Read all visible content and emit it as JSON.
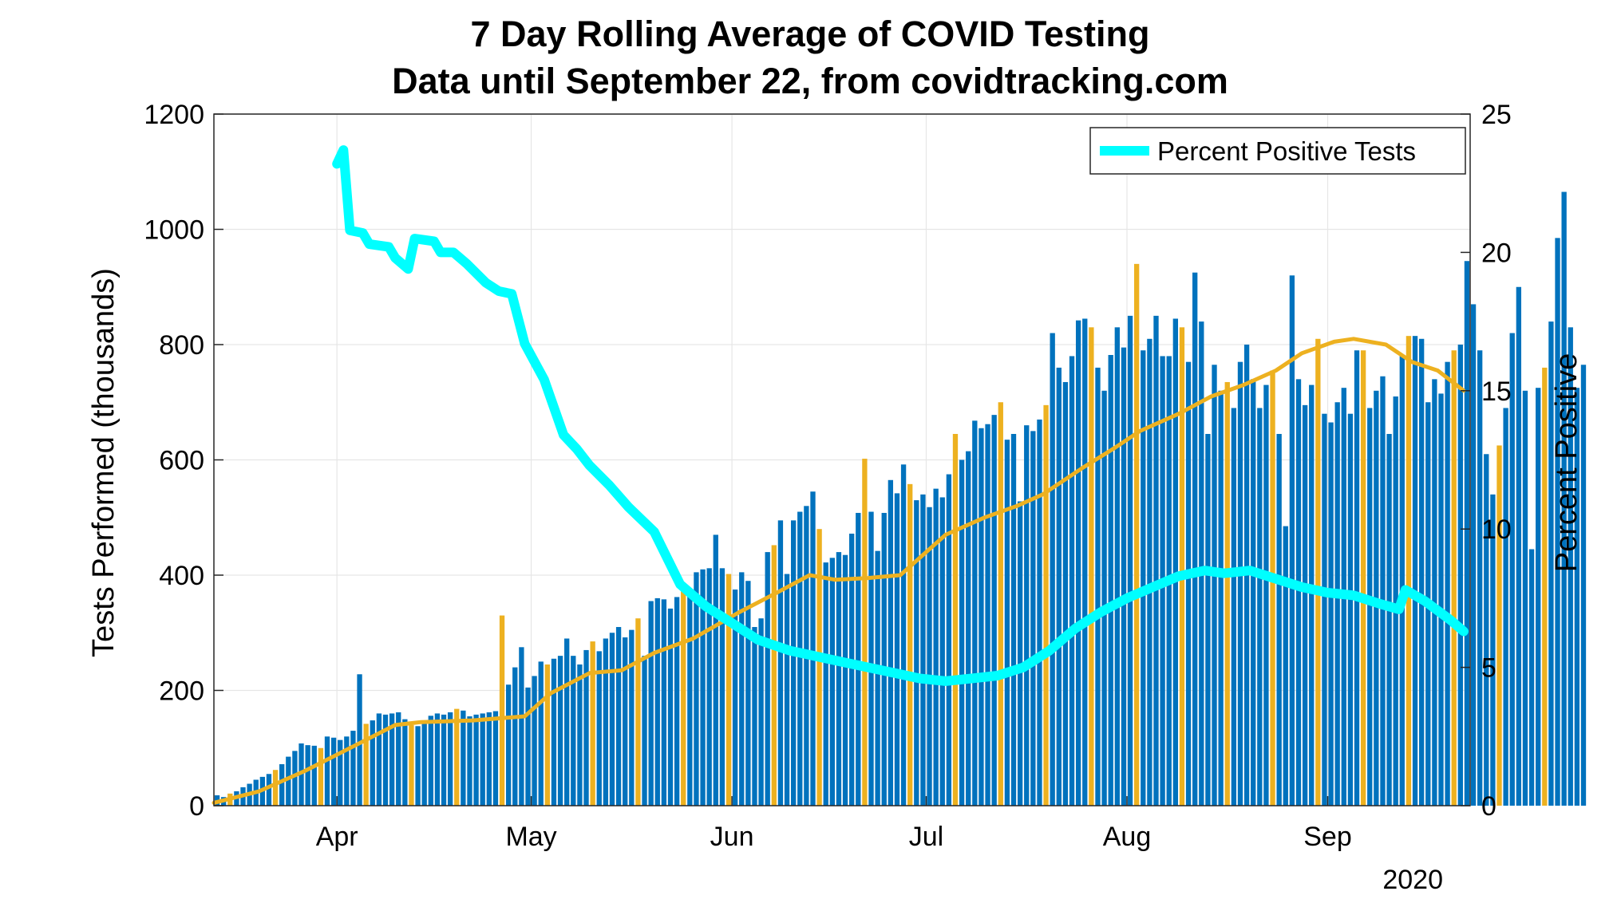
{
  "chart_data": {
    "type": "bar",
    "title": "7 Day Rolling Average of COVID Testing",
    "subtitle": "Data until September 22, from covidtracking.com",
    "ylabel": "Tests Performed (thousands)",
    "ylabel_right": "Percent Positive",
    "x_axis": {
      "start_date": "2020-03-13",
      "end_date": "2020-09-23",
      "ticks": [
        {
          "date": "2020-04-01",
          "label": "Apr"
        },
        {
          "date": "2020-05-01",
          "label": "May"
        },
        {
          "date": "2020-06-01",
          "label": "Jun"
        },
        {
          "date": "2020-07-01",
          "label": "Jul"
        },
        {
          "date": "2020-08-01",
          "label": "Aug"
        },
        {
          "date": "2020-09-01",
          "label": "Sep"
        }
      ],
      "year_label": "2020"
    },
    "y_left": {
      "ylim": [
        0,
        1200
      ],
      "ticks": [
        0,
        200,
        400,
        600,
        800,
        1000,
        1200
      ]
    },
    "y_right": {
      "ylim": [
        0,
        25
      ],
      "ticks": [
        0,
        5,
        10,
        15,
        20,
        25
      ]
    },
    "grid": true,
    "legend_position": "top-right",
    "legend": [
      {
        "name": "Percent Positive Tests",
        "color": "#00ffff"
      }
    ],
    "colors": {
      "weekday_bar": "#0072bd",
      "weekend_bar": "#edb120",
      "rolling_avg": "#edb120",
      "percent_positive": "#00ffff"
    },
    "series": [
      {
        "name": "Tests Performed (thousands)",
        "kind": "bar",
        "axis": "left",
        "start_date": "2020-03-13",
        "values": [
          18,
          15,
          21,
          25,
          32,
          38,
          45,
          50,
          55,
          62,
          72,
          85,
          95,
          108,
          105,
          104,
          100,
          120,
          118,
          114,
          120,
          130,
          228,
          142,
          148,
          160,
          158,
          160,
          162,
          150,
          140,
          138,
          148,
          156,
          160,
          158,
          162,
          168,
          165,
          155,
          158,
          160,
          162,
          164,
          330,
          210,
          240,
          275,
          205,
          225,
          250,
          245,
          255,
          260,
          290,
          260,
          245,
          270,
          285,
          268,
          290,
          300,
          310,
          292,
          305,
          325,
          260,
          355,
          360,
          358,
          342,
          362,
          372,
          370,
          405,
          410,
          412,
          470,
          412,
          402,
          375,
          405,
          390,
          310,
          325,
          440,
          452,
          495,
          402,
          495,
          510,
          520,
          545,
          480,
          422,
          430,
          440,
          435,
          472,
          508,
          602,
          510,
          442,
          508,
          565,
          542,
          592,
          558,
          530,
          540,
          518,
          550,
          535,
          575,
          645,
          600,
          615,
          668,
          655,
          662,
          678,
          700,
          635,
          645,
          528,
          660,
          650,
          670,
          695,
          820,
          760,
          735,
          780,
          842,
          845,
          830,
          760,
          720,
          782,
          830,
          795,
          850,
          940,
          790,
          810,
          850,
          780,
          780,
          845,
          830,
          770,
          925,
          840,
          645,
          765,
          720,
          735,
          690,
          770,
          800,
          740,
          690,
          730,
          755,
          645,
          485,
          920,
          740,
          695,
          730,
          810,
          680,
          665,
          700,
          725,
          680,
          790,
          790,
          690,
          720,
          745,
          645,
          710,
          780,
          815,
          815,
          810,
          700,
          740,
          715,
          770,
          790,
          800,
          945,
          870,
          790,
          610,
          540,
          625,
          690,
          820,
          900,
          720,
          445,
          725,
          760,
          840,
          985,
          1065,
          830,
          725,
          765
        ],
        "weekend_marked_in_color": "#edb120"
      },
      {
        "name": "7 Day Rolling Average",
        "kind": "line",
        "axis": "left",
        "points": [
          [
            "2020-03-13",
            5
          ],
          [
            "2020-03-20",
            25
          ],
          [
            "2020-03-27",
            60
          ],
          [
            "2020-04-03",
            100
          ],
          [
            "2020-04-10",
            140
          ],
          [
            "2020-04-14",
            145
          ],
          [
            "2020-04-22",
            148
          ],
          [
            "2020-04-30",
            155
          ],
          [
            "2020-05-04",
            195
          ],
          [
            "2020-05-10",
            230
          ],
          [
            "2020-05-15",
            235
          ],
          [
            "2020-05-20",
            265
          ],
          [
            "2020-05-26",
            290
          ],
          [
            "2020-06-02",
            335
          ],
          [
            "2020-06-08",
            370
          ],
          [
            "2020-06-13",
            400
          ],
          [
            "2020-06-17",
            392
          ],
          [
            "2020-06-22",
            395
          ],
          [
            "2020-06-27",
            400
          ],
          [
            "2020-07-04",
            470
          ],
          [
            "2020-07-10",
            500
          ],
          [
            "2020-07-15",
            520
          ],
          [
            "2020-07-19",
            540
          ],
          [
            "2020-07-25",
            585
          ],
          [
            "2020-07-30",
            620
          ],
          [
            "2020-08-03",
            650
          ],
          [
            "2020-08-09",
            680
          ],
          [
            "2020-08-14",
            710
          ],
          [
            "2020-08-19",
            730
          ],
          [
            "2020-08-24",
            755
          ],
          [
            "2020-08-28",
            785
          ],
          [
            "2020-09-02",
            805
          ],
          [
            "2020-09-05",
            810
          ],
          [
            "2020-09-10",
            800
          ],
          [
            "2020-09-14",
            770
          ],
          [
            "2020-09-18",
            755
          ],
          [
            "2020-09-22",
            720
          ]
        ]
      },
      {
        "name": "Percent Positive Tests",
        "kind": "line",
        "axis": "right",
        "points": [
          [
            "2020-04-01",
            23.2
          ],
          [
            "2020-04-02",
            23.7
          ],
          [
            "2020-04-03",
            20.8
          ],
          [
            "2020-04-05",
            20.7
          ],
          [
            "2020-04-06",
            20.3
          ],
          [
            "2020-04-09",
            20.2
          ],
          [
            "2020-04-10",
            19.8
          ],
          [
            "2020-04-12",
            19.4
          ],
          [
            "2020-04-13",
            20.5
          ],
          [
            "2020-04-16",
            20.4
          ],
          [
            "2020-04-17",
            20.0
          ],
          [
            "2020-04-19",
            20.0
          ],
          [
            "2020-04-21",
            19.6
          ],
          [
            "2020-04-24",
            18.9
          ],
          [
            "2020-04-26",
            18.6
          ],
          [
            "2020-04-28",
            18.5
          ],
          [
            "2020-04-30",
            16.7
          ],
          [
            "2020-05-03",
            15.4
          ],
          [
            "2020-05-06",
            13.4
          ],
          [
            "2020-05-08",
            12.9
          ],
          [
            "2020-05-10",
            12.3
          ],
          [
            "2020-05-13",
            11.6
          ],
          [
            "2020-05-16",
            10.8
          ],
          [
            "2020-05-20",
            9.9
          ],
          [
            "2020-05-24",
            8.0
          ],
          [
            "2020-05-28",
            7.2
          ],
          [
            "2020-06-01",
            6.6
          ],
          [
            "2020-06-05",
            6.0
          ],
          [
            "2020-06-10",
            5.6
          ],
          [
            "2020-06-14",
            5.4
          ],
          [
            "2020-06-18",
            5.2
          ],
          [
            "2020-06-22",
            5.0
          ],
          [
            "2020-06-26",
            4.8
          ],
          [
            "2020-06-30",
            4.6
          ],
          [
            "2020-07-04",
            4.5
          ],
          [
            "2020-07-08",
            4.6
          ],
          [
            "2020-07-12",
            4.7
          ],
          [
            "2020-07-16",
            5.0
          ],
          [
            "2020-07-20",
            5.6
          ],
          [
            "2020-07-24",
            6.4
          ],
          [
            "2020-07-28",
            7.0
          ],
          [
            "2020-08-01",
            7.5
          ],
          [
            "2020-08-05",
            7.9
          ],
          [
            "2020-08-09",
            8.3
          ],
          [
            "2020-08-13",
            8.5
          ],
          [
            "2020-08-16",
            8.4
          ],
          [
            "2020-08-20",
            8.5
          ],
          [
            "2020-08-24",
            8.2
          ],
          [
            "2020-08-28",
            7.9
          ],
          [
            "2020-09-01",
            7.7
          ],
          [
            "2020-09-05",
            7.6
          ],
          [
            "2020-09-09",
            7.3
          ],
          [
            "2020-09-12",
            7.1
          ],
          [
            "2020-09-13",
            7.8
          ],
          [
            "2020-09-16",
            7.4
          ],
          [
            "2020-09-20",
            6.7
          ],
          [
            "2020-09-22",
            6.3
          ]
        ]
      }
    ]
  }
}
